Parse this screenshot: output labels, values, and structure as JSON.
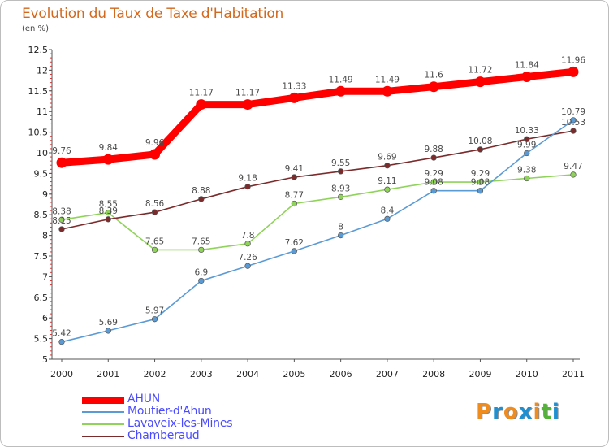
{
  "title": "Evolution du Taux de Taxe d'Habitation",
  "subtitle": "(en %)",
  "logo": {
    "letters": [
      "P",
      "r",
      "o",
      "x",
      "i",
      "t",
      "i"
    ],
    "colors": [
      "#f08c1e",
      "#1e90d2",
      "#f08c1e",
      "#1e90d2",
      "#f08c1e",
      "#52b435",
      "#1e90d2"
    ]
  },
  "chart_data": {
    "type": "line",
    "x": [
      "2000",
      "2001",
      "2002",
      "2003",
      "2004",
      "2005",
      "2006",
      "2007",
      "2008",
      "2009",
      "2010",
      "2011"
    ],
    "ylim": [
      5,
      12.5
    ],
    "yticks": [
      "5",
      "5.5",
      "6",
      "6.5",
      "7",
      "7.5",
      "8",
      "8.5",
      "9",
      "9.5",
      "10",
      "10.5",
      "11",
      "11.5",
      "12",
      "12.5"
    ],
    "grid": false,
    "legend_position": "bottom-left",
    "series": [
      {
        "name": "AHUN",
        "color": "#ff0000",
        "values": [
          9.76,
          9.84,
          9.96,
          11.17,
          11.17,
          11.33,
          11.49,
          11.49,
          11.6,
          11.72,
          11.84,
          11.96
        ],
        "labels": [
          "9.76",
          "9.84",
          "9.96",
          "11.17",
          "11.17",
          "11.33",
          "11.49",
          "11.49",
          "11.6",
          "11.72",
          "11.84",
          "11.96"
        ]
      },
      {
        "name": "Moutier-d'Ahun",
        "color": "#5b9bd5",
        "values": [
          5.42,
          5.69,
          5.97,
          6.9,
          7.26,
          7.62,
          8,
          8.4,
          9.08,
          9.08,
          9.99,
          10.79
        ],
        "labels": [
          "5.42",
          "5.69",
          "5.97",
          "6.9",
          "7.26",
          "7.62",
          "8",
          "8.4",
          "9.08",
          "9.08",
          "9.99",
          "10.79"
        ]
      },
      {
        "name": "Lavaveix-les-Mines",
        "color": "#8fd35a",
        "values": [
          8.38,
          8.55,
          7.65,
          7.65,
          7.8,
          8.77,
          8.93,
          9.11,
          9.29,
          9.29,
          9.38,
          9.47
        ],
        "labels": [
          "8.38",
          "8.55",
          "7.65",
          "7.65",
          "7.8",
          "8.77",
          "8.93",
          "9.11",
          "9.29",
          "9.29",
          "9.38",
          "9.47"
        ]
      },
      {
        "name": "Chamberaud",
        "color": "#7b2b2b",
        "values": [
          8.15,
          8.39,
          8.56,
          8.88,
          9.18,
          9.41,
          9.55,
          9.69,
          9.88,
          10.08,
          10.33,
          10.53
        ],
        "labels": [
          "8.15",
          "8.39",
          "8.56",
          "8.88",
          "9.18",
          "9.41",
          "9.55",
          "9.69",
          "9.88",
          "10.08",
          "10.33",
          "10.53"
        ]
      }
    ]
  }
}
